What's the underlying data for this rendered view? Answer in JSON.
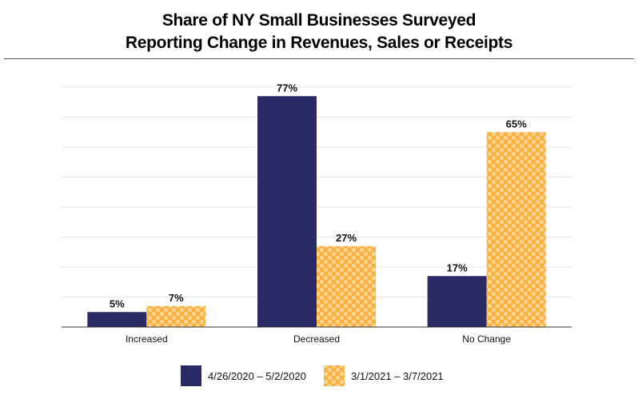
{
  "chart_data": {
    "type": "bar",
    "title_line1": "Share of NY Small Businesses Surveyed",
    "title_line2": "Reporting Change in Revenues, Sales or Receipts",
    "categories": [
      "Increased",
      "Decreased",
      "No Change"
    ],
    "series": [
      {
        "name": "4/26/2020 – 5/2/2020",
        "values": [
          5,
          77,
          17
        ],
        "labels": [
          "5%",
          "77%",
          "17%"
        ],
        "color": "#2a2a66"
      },
      {
        "name": "3/1/2021 – 3/7/2021",
        "values": [
          7,
          27,
          65
        ],
        "labels": [
          "7%",
          "27%",
          "65%"
        ],
        "color": "#fbb040",
        "pattern_color": "#fdd591"
      }
    ],
    "xlabel": "",
    "ylabel": "",
    "ylim": [
      0,
      80
    ],
    "grid": true,
    "legend": "bottom-center"
  }
}
